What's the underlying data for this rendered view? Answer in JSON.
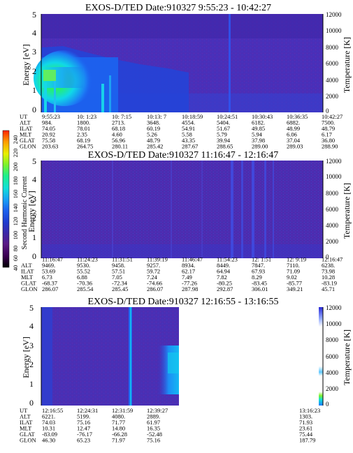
{
  "colorbar": {
    "label": "Second Harmonic Current",
    "ticks": [
      40,
      60,
      80,
      100,
      120,
      140,
      160,
      180,
      200,
      220,
      240
    ],
    "colors": [
      "#000000",
      "#3a0050",
      "#5a1a86",
      "#3c28a8",
      "#1f3cd0",
      "#1c64f0",
      "#17a4f5",
      "#10e0d8",
      "#1ef08a",
      "#7cf22c",
      "#e8f000",
      "#ff9a00",
      "#ff2200"
    ]
  },
  "chart_data": [
    {
      "type": "heatmap",
      "title": "EXOS-D/TED   Date:910327  9:55:23 - 10:42:27",
      "ylabel": "Energy [eV]",
      "y2label": "Temperature [K]",
      "ylim": [
        0,
        5
      ],
      "y2lim": [
        0,
        12000
      ],
      "yticks": [
        0,
        1,
        2,
        3,
        4,
        5
      ],
      "y2ticks": [
        0,
        2000,
        4000,
        6000,
        8000,
        10000,
        12000
      ],
      "bright_region": {
        "ut_range": [
          "9:55:23",
          "10:13:07"
        ],
        "energy_range": [
          0,
          2.5
        ],
        "peak_energy": 2.0
      },
      "bright_lines_ut": [
        "10:24:51"
      ],
      "data_coverage_ut_end": "10:42:27",
      "orbit_table": {
        "labels": [
          "UT",
          "ALT",
          "ILAT",
          "MLT",
          "GLAT",
          "GLON"
        ],
        "columns": [
          [
            "9:55:23",
            "984.",
            "74.05",
            "20.92",
            "75.58",
            "203.63"
          ],
          [
            "10: 1:23",
            "1800.",
            "78.01",
            "2.35",
            "68.19",
            "264.75"
          ],
          [
            "10: 7:15",
            "2713.",
            "68.18",
            "4.60",
            "56.96",
            "280.11"
          ],
          [
            "10:13: 7",
            "3648.",
            "60.19",
            "5.26",
            "48.79",
            "285.42"
          ],
          [
            "10:18:59",
            "4554.",
            "54.91",
            "5.58",
            "43.35",
            "287.67"
          ],
          [
            "10:24:51",
            "5404.",
            "51.67",
            "5.79",
            "39.94",
            "288.65"
          ],
          [
            "10:30:43",
            "6182.",
            "49.85",
            "5.94",
            "37.98",
            "289.00"
          ],
          [
            "10:36:35",
            "6882.",
            "48.99",
            "6.06",
            "37.04",
            "289.03"
          ],
          [
            "10:42:27",
            "7500.",
            "48.79",
            "6.17",
            "36.80",
            "288.90"
          ]
        ]
      }
    },
    {
      "type": "heatmap",
      "title": "EXOS-D/TED   Date:910327  11:16:47 - 12:16:47",
      "ylabel": "Energy [eV]",
      "y2label": "Temperature [K]",
      "ylim": [
        0,
        5
      ],
      "y2lim": [
        0,
        12000
      ],
      "yticks": [
        0,
        1,
        2,
        3,
        4,
        5
      ],
      "y2ticks": [
        0,
        2000,
        4000,
        6000,
        8000,
        10000,
        12000
      ],
      "bright_lines_ut": [
        "11:54:23",
        "12: 1:51"
      ],
      "data_coverage_ut_end": "12:16:47",
      "orbit_table": {
        "labels": [
          "UT",
          "ALT",
          "ILAT",
          "MLT",
          "GLAT",
          "GLON"
        ],
        "columns": [
          [
            "11:16:47",
            "9469.",
            "53.69",
            "6.73",
            "-68.37",
            "286.07"
          ],
          [
            "11:24:23",
            "9530.",
            "55.52",
            "6.88",
            "-70.36",
            "285.54"
          ],
          [
            "11:31:51",
            "9458.",
            "57.51",
            "7.05",
            "-72.34",
            "285.45"
          ],
          [
            "11:39:19",
            "9257.",
            "59.72",
            "7.24",
            "-74.66",
            "286.07"
          ],
          [
            "11:46:47",
            "8934.",
            "62.17",
            "7.49",
            "-77.26",
            "287.98"
          ],
          [
            "11:54:23",
            "8449.",
            "64.94",
            "7.82",
            "-80.25",
            "292.87"
          ],
          [
            "12: 1:51",
            "7847.",
            "67.93",
            "8.29",
            "-83.45",
            "306.01"
          ],
          [
            "12: 9:19",
            "7110.",
            "71.09",
            "9.02",
            "-85.77",
            "349.21"
          ],
          [
            "12:16:47",
            "6238.",
            "73.98",
            "10.28",
            "-83.19",
            "45.71"
          ]
        ]
      }
    },
    {
      "type": "heatmap",
      "title": "EXOS-D/TED   Date:910327  12:16:55 - 13:16:55",
      "ylabel": "Energy [eV]",
      "y2label": "Temperature [K]",
      "ylim": [
        0,
        5
      ],
      "y2lim": [
        0,
        12000
      ],
      "yticks": [
        0,
        1,
        2,
        3,
        4,
        5
      ],
      "y2ticks": [
        0,
        2000,
        4000,
        6000,
        8000,
        10000,
        12000
      ],
      "bright_lines_ut": [
        "12:31:59"
      ],
      "data_coverage_ut_end": "12:39:27",
      "orbit_table": {
        "labels": [
          "UT",
          "ALT",
          "ILAT",
          "MLT",
          "GLAT",
          "GLON"
        ],
        "columns": [
          [
            "12:16:55",
            "6221.",
            "74.03",
            "10.31",
            "-83.09",
            "46.30"
          ],
          [
            "12:24:31",
            "5199.",
            "75.16",
            "12.47",
            "-76.17",
            "65.23"
          ],
          [
            "12:31:59",
            "4080.",
            "71.77",
            "14.80",
            "-66.28",
            "71.97"
          ],
          [
            "12:39:27",
            "2889.",
            "61.97",
            "16.35",
            "-52.48",
            "75.16"
          ],
          [
            "13:16:23",
            "1303.",
            "71.93",
            "23.61",
            "75.44",
            "187.79"
          ]
        ]
      }
    }
  ]
}
